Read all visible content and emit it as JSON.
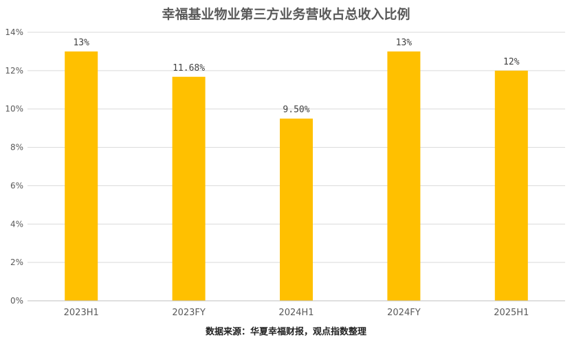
{
  "chart_data": {
    "type": "bar",
    "title": "幸福基业物业第三方业务营收占总收入比例",
    "categories": [
      "2023H1",
      "2023FY",
      "2024H1",
      "2024FY",
      "2025H1"
    ],
    "values": [
      13,
      11.68,
      9.5,
      13,
      12
    ],
    "data_labels": [
      "13%",
      "11.68%",
      "9.50%",
      "13%",
      "12%"
    ],
    "ylim": [
      0,
      14
    ],
    "yticks": [
      0,
      2,
      4,
      6,
      8,
      10,
      12,
      14
    ],
    "ytick_labels": [
      "0%",
      "2%",
      "4%",
      "6%",
      "8%",
      "10%",
      "12%",
      "14%"
    ],
    "xlabel": "",
    "ylabel": "",
    "grid": true,
    "legend": "none",
    "bar_color": "#FFC000",
    "source": "数据来源：华夏幸福财报，观点指数整理"
  }
}
